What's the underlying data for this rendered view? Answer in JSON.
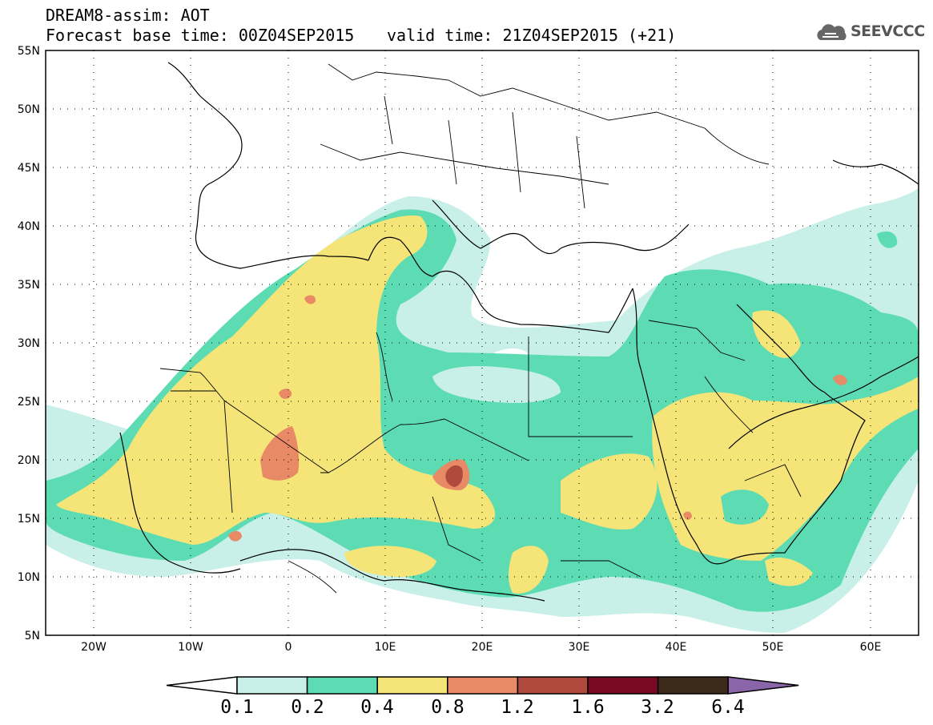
{
  "title": {
    "line1": "DREAM8-assim: AOT",
    "line2": "Forecast base time: 00Z04SEP2015",
    "valid": "valid time: 21Z04SEP2015 (+21)"
  },
  "logo": {
    "text": "SEEVCCC",
    "icon": "cloud-icon"
  },
  "map": {
    "lon_range": [
      -25,
      65
    ],
    "lat_range": [
      5,
      55
    ],
    "lat_labels": [
      "55N",
      "50N",
      "45N",
      "40N",
      "35N",
      "30N",
      "25N",
      "20N",
      "15N",
      "10N",
      "5N"
    ],
    "lon_labels": [
      "20W",
      "10W",
      "0",
      "10E",
      "20E",
      "30E",
      "40E",
      "50E",
      "60E"
    ],
    "grid": "dotted"
  },
  "colorbar": {
    "levels": [
      "0.1",
      "0.2",
      "0.4",
      "0.8",
      "1.2",
      "1.6",
      "3.2",
      "6.4"
    ],
    "colors": [
      "#ffffff",
      "#c8f0e8",
      "#5ddcb4",
      "#f5e478",
      "#e88a66",
      "#b04a3c",
      "#7a0a24",
      "#3c2a1a",
      "#8a66a8"
    ]
  }
}
